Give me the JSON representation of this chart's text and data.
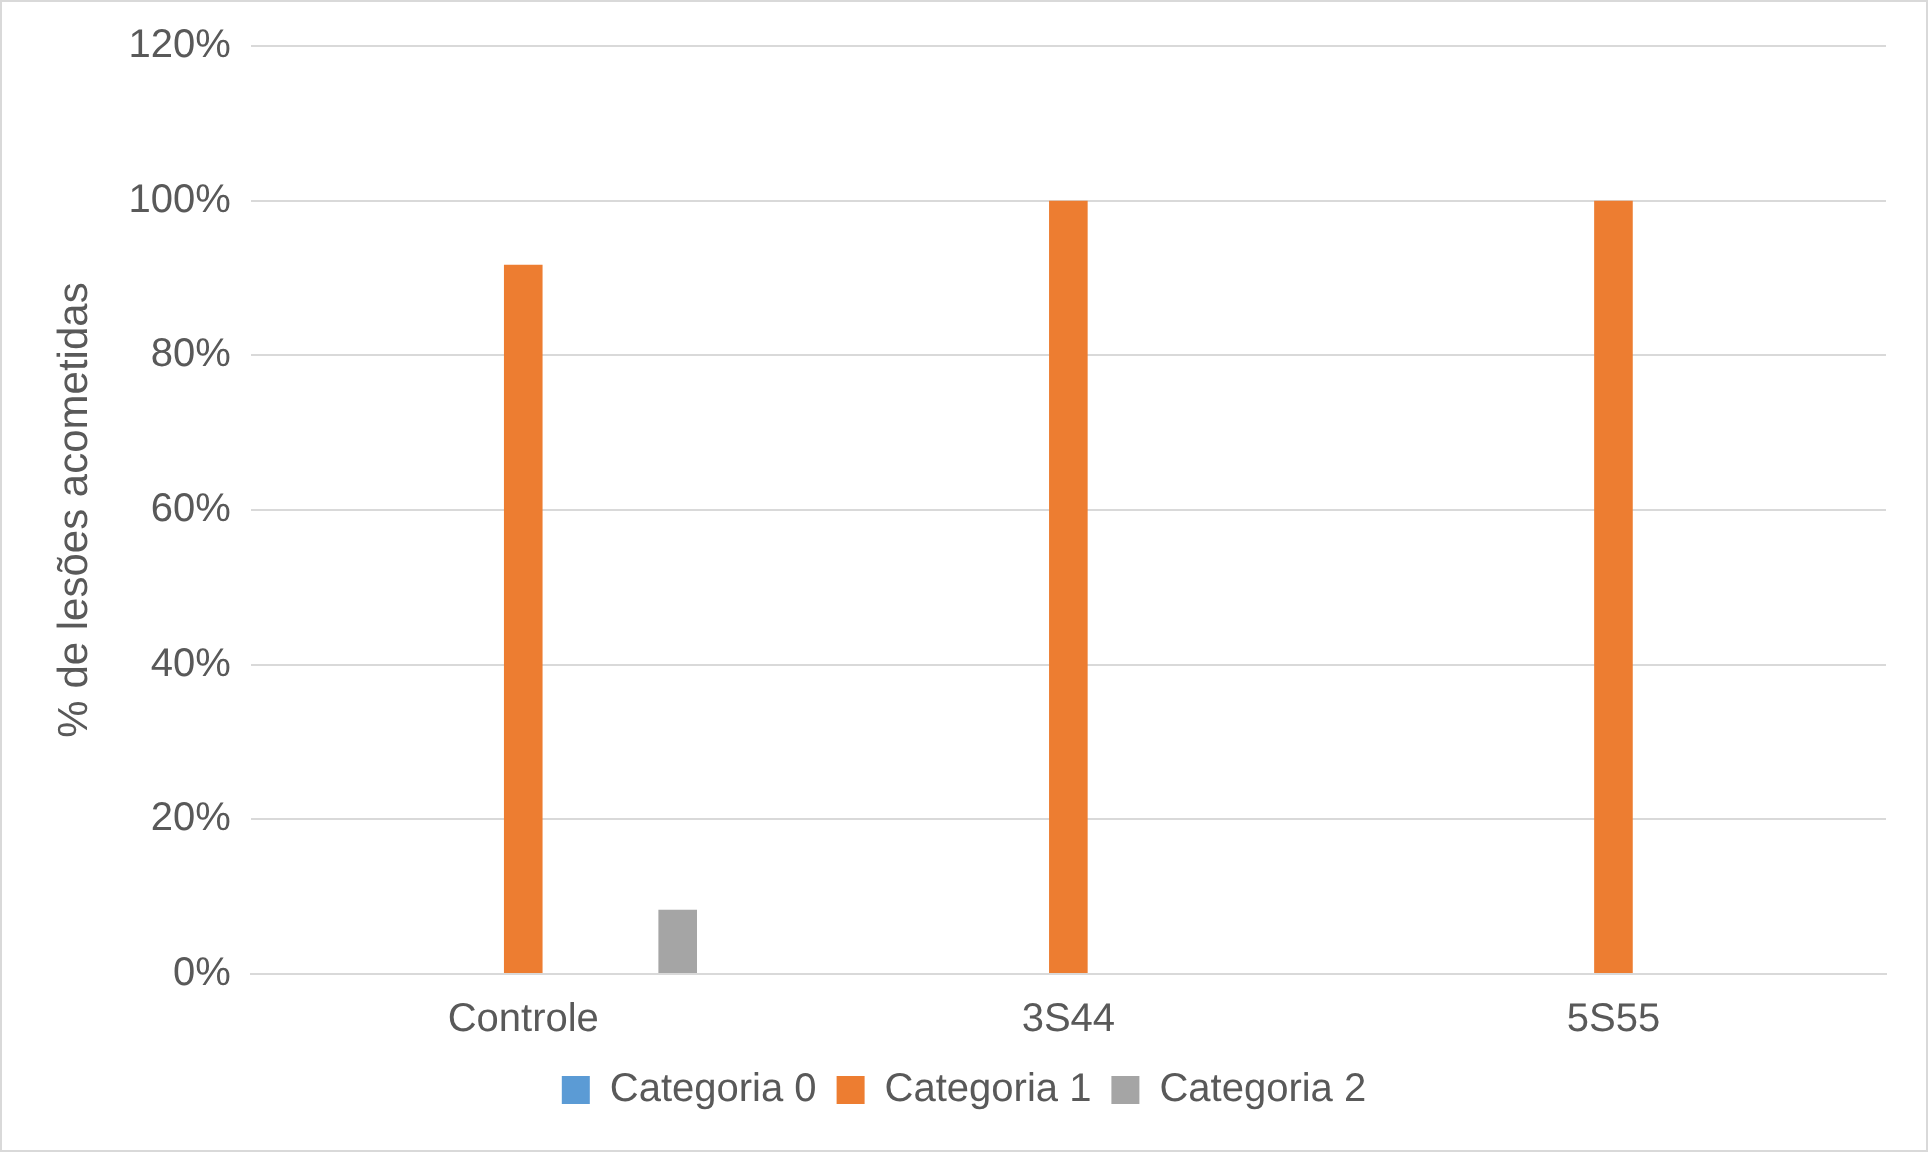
{
  "chart_data": {
    "type": "bar",
    "ylabel": "% de lesões acometidas",
    "categories": [
      "Controle",
      "3S44",
      "5S55"
    ],
    "series": [
      {
        "name": "Categoria 0",
        "color": "#5b9bd5",
        "values": [
          0,
          0,
          0
        ]
      },
      {
        "name": "Categoria 1",
        "color": "#ed7d31",
        "values": [
          91.7,
          100,
          100
        ]
      },
      {
        "name": "Categoria 2",
        "color": "#a5a5a5",
        "values": [
          8.3,
          0,
          0
        ]
      }
    ],
    "ylim": [
      0,
      120
    ],
    "yticks": [
      {
        "value": 0,
        "label": "0%"
      },
      {
        "value": 20,
        "label": "20%"
      },
      {
        "value": 40,
        "label": "40%"
      },
      {
        "value": 60,
        "label": "60%"
      },
      {
        "value": 80,
        "label": "80%"
      },
      {
        "value": 100,
        "label": "100%"
      },
      {
        "value": 120,
        "label": "120%"
      }
    ],
    "grid": "y",
    "legend": "bottom"
  }
}
